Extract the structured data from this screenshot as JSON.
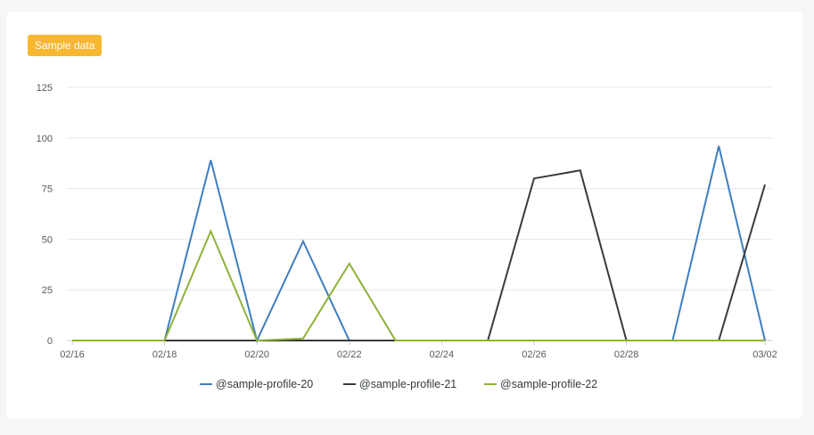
{
  "badge": {
    "label": "Sample data",
    "color": "#f7b731"
  },
  "chart_data": {
    "type": "line",
    "x": [
      "02/16",
      "02/17",
      "02/18",
      "02/19",
      "02/20",
      "02/21",
      "02/22",
      "02/23",
      "02/24",
      "02/25",
      "02/26",
      "02/27",
      "02/28",
      "02/29",
      "03/01",
      "03/02"
    ],
    "x_tick_labels": [
      "02/16",
      "02/18",
      "02/20",
      "02/22",
      "02/24",
      "02/26",
      "02/28",
      "03/02"
    ],
    "ylim": [
      0,
      125
    ],
    "y_ticks": [
      0,
      25,
      50,
      75,
      100,
      125
    ],
    "grid": true,
    "legend_position": "bottom",
    "series": [
      {
        "name": "@sample-profile-20",
        "color": "#3f7ebf",
        "values": [
          0,
          0,
          0,
          89,
          0,
          49,
          0,
          0,
          0,
          0,
          0,
          0,
          0,
          0,
          96,
          0
        ]
      },
      {
        "name": "@sample-profile-21",
        "color": "#3a3a3a",
        "values": [
          0,
          0,
          0,
          0,
          0,
          0,
          0,
          0,
          0,
          0,
          80,
          84,
          0,
          0,
          0,
          77
        ]
      },
      {
        "name": "@sample-profile-22",
        "color": "#8fb339",
        "values": [
          0,
          0,
          0,
          54,
          0,
          1,
          38,
          0,
          0,
          0,
          0,
          0,
          0,
          0,
          0,
          0
        ]
      }
    ]
  }
}
